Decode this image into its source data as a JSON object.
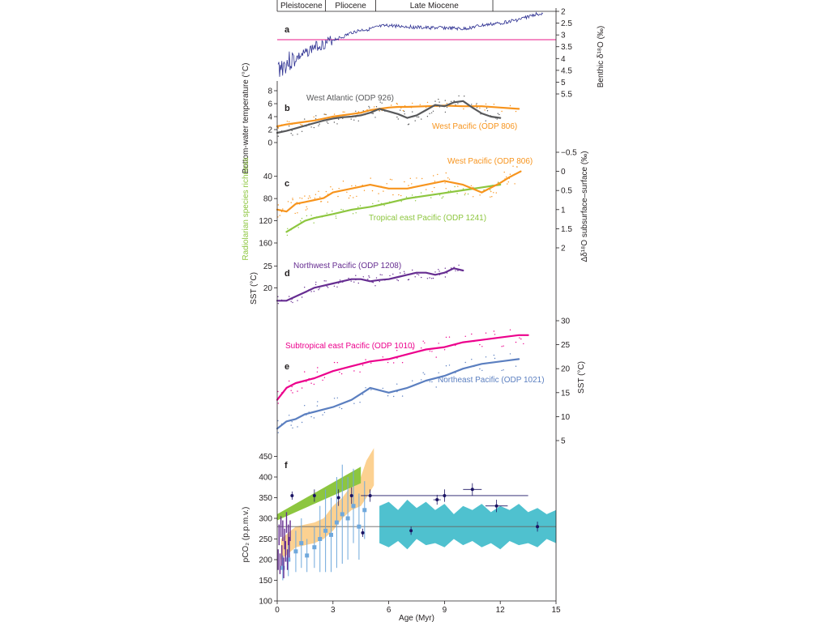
{
  "figure": {
    "epochs": [
      "Pleistocene",
      "Pliocene",
      "Late Miocene"
    ],
    "epoch_bounds_myr": [
      0,
      2.6,
      5.3,
      11.6
    ],
    "x_axis": {
      "label": "Age (Myr)",
      "ticks": [
        "0",
        "3",
        "6",
        "9",
        "12",
        "15"
      ],
      "range": [
        0,
        15
      ]
    }
  },
  "chart_data": [
    {
      "panel": "a",
      "type": "line",
      "ylabel": "Benthic δ¹⁸O (‰)",
      "ylim": [
        2,
        5.5
      ],
      "inverted": true,
      "yticks": [
        "2",
        "2.5",
        "3",
        "3.5",
        "4",
        "4.5",
        "5",
        "5.5"
      ],
      "reference_line_y": 3.2,
      "colors": {
        "series": "#2e3192",
        "reference": "#e8178a"
      },
      "series": [
        {
          "x": [
            0.1,
            0.5,
            1,
            1.5,
            2,
            2.5,
            3,
            3.5,
            4,
            4.5,
            5,
            5.5,
            6,
            7,
            8,
            9,
            10,
            11,
            12,
            13,
            14
          ],
          "values": [
            4.4,
            4.2,
            4.0,
            3.8,
            3.5,
            3.4,
            3.2,
            3.1,
            2.9,
            2.8,
            2.75,
            2.65,
            2.6,
            2.65,
            2.7,
            2.7,
            2.75,
            2.6,
            2.5,
            2.35,
            2.1
          ]
        }
      ]
    },
    {
      "panel": "b",
      "type": "line",
      "ylabel": "Bottom-water temperature (°C)",
      "ylim": [
        0,
        8
      ],
      "yticks": [
        "0",
        "2",
        "4",
        "6",
        "8"
      ],
      "colors": {
        "West Atlantic (ODP 926)": "#58595b",
        "West Pacific (ODP 806)": "#f7941d"
      },
      "annotations": [
        "West Atlantic (ODP 926)",
        "West Pacific (ODP 806)"
      ],
      "series": [
        {
          "name": "West Atlantic (ODP 926)",
          "x": [
            0,
            0.5,
            1,
            1.5,
            2,
            2.5,
            3,
            3.5,
            4,
            4.5,
            5,
            5.5,
            6,
            6.5,
            7,
            7.5,
            8,
            8.5,
            9,
            9.5,
            10,
            10.5,
            11,
            11.5,
            12
          ],
          "values": [
            1.5,
            1.8,
            2.2,
            2.6,
            3.0,
            3.4,
            3.7,
            3.9,
            4.0,
            4.2,
            4.6,
            5.2,
            4.8,
            4.4,
            3.8,
            4.2,
            5.0,
            5.8,
            5.6,
            6.2,
            6.4,
            5.4,
            4.5,
            4.0,
            3.8
          ]
        },
        {
          "name": "West Pacific (ODP 806)",
          "x": [
            0,
            0.5,
            1,
            1.5,
            2,
            2.5,
            3,
            3.5,
            4,
            4.5,
            5,
            5.5,
            6,
            6.5,
            7,
            8,
            9,
            10,
            11,
            12,
            13
          ],
          "values": [
            2.5,
            2.8,
            3.0,
            3.2,
            3.4,
            3.7,
            4.0,
            4.2,
            4.4,
            4.6,
            5.0,
            5.2,
            5.4,
            5.5,
            5.5,
            5.6,
            5.7,
            5.6,
            5.6,
            5.4,
            5.2
          ]
        }
      ]
    },
    {
      "panel": "c",
      "type": "line",
      "ylabel": "Radiolarian species richness",
      "ylim": [
        20,
        160
      ],
      "inverted": true,
      "yticks": [
        "40",
        "80",
        "120",
        "160"
      ],
      "ylabel_right": "Δδ¹⁸O subsurface–surface (‰)",
      "ylim_right": [
        -0.5,
        2
      ],
      "yticks_right": [
        "−0.5",
        "0",
        "0.5",
        "1",
        "1.5",
        "2"
      ],
      "colors": {
        "West Pacific (ODP 806)": "#f7941d",
        "Tropical east Pacific (ODP 1241)": "#8dc63f"
      },
      "annotations": [
        "West Pacific (ODP 806)",
        "Tropical east Pacific (ODP 1241)"
      ],
      "series": [
        {
          "name": "West Pacific (ODP 806)",
          "axis": "right",
          "x": [
            0,
            0.5,
            1,
            1.5,
            2,
            2.5,
            3,
            4,
            5,
            6,
            7,
            8,
            9,
            10,
            11,
            12,
            12.5,
            13.1
          ],
          "values": [
            1.0,
            1.05,
            0.85,
            0.8,
            0.75,
            0.7,
            0.55,
            0.45,
            0.35,
            0.45,
            0.45,
            0.35,
            0.25,
            0.35,
            0.55,
            0.3,
            0.15,
            0.0
          ]
        },
        {
          "name": "Tropical east Pacific (ODP 1241)",
          "axis": "left",
          "x": [
            0.5,
            1,
            1.5,
            2,
            3,
            4,
            5,
            6,
            7,
            8,
            9,
            10,
            11,
            12
          ],
          "values": [
            140,
            130,
            120,
            115,
            108,
            100,
            95,
            88,
            80,
            75,
            70,
            65,
            60,
            55
          ]
        }
      ]
    },
    {
      "panel": "d",
      "type": "line",
      "ylabel": "SST (°C)",
      "ylim": [
        15,
        27
      ],
      "yticks": [
        "20",
        "25"
      ],
      "colors": {
        "Northwest Pacific (ODP 1208)": "#662d91"
      },
      "annotations": [
        "Northwest Pacific (ODP 1208)"
      ],
      "series": [
        {
          "name": "Northwest Pacific (ODP 1208)",
          "x": [
            0,
            0.5,
            1,
            1.5,
            2,
            2.5,
            3,
            3.5,
            4,
            4.5,
            5,
            5.5,
            6,
            6.5,
            7,
            7.5,
            8,
            8.5,
            9,
            9.5,
            10
          ],
          "values": [
            17,
            17,
            18,
            19,
            20,
            20.5,
            21,
            21.5,
            22,
            22,
            21.5,
            21.8,
            22,
            22.5,
            23,
            23.5,
            23.5,
            23,
            23.5,
            24.5,
            24
          ]
        }
      ]
    },
    {
      "panel": "e",
      "type": "line",
      "ylabel": "SST (°C)",
      "ylim": [
        5,
        30
      ],
      "yticks": [
        "5",
        "10",
        "15",
        "20",
        "25",
        "30"
      ],
      "colors": {
        "Subtropical east Pacific (ODP 1010)": "#ec008c",
        "Northeast Pacific (ODP 1021)": "#5b7fc0"
      },
      "annotations": [
        "Subtropical east Pacific (ODP 1010)",
        "Northeast Pacific (ODP 1021)"
      ],
      "series": [
        {
          "name": "Subtropical east Pacific (ODP 1010)",
          "x": [
            0,
            0.5,
            1,
            1.5,
            2,
            3,
            4,
            5,
            6,
            7,
            8,
            9,
            10,
            11,
            12,
            13,
            13.5
          ],
          "values": [
            13.5,
            16,
            17,
            17.5,
            18,
            19.5,
            20.5,
            21.5,
            22,
            23,
            24,
            24.5,
            25.5,
            26,
            26.5,
            27,
            27
          ]
        },
        {
          "name": "Northeast Pacific (ODP 1021)",
          "x": [
            0,
            0.5,
            1,
            1.5,
            2,
            3,
            4,
            5,
            6,
            7,
            8,
            9,
            10,
            11,
            12,
            13
          ],
          "values": [
            7.5,
            9,
            9.5,
            10.5,
            11,
            12,
            13.5,
            16,
            15,
            16,
            17.5,
            18.5,
            20,
            21,
            21.5,
            22
          ]
        }
      ]
    },
    {
      "panel": "f",
      "type": "scatter",
      "ylabel": "pCO₂ (p.p.m.v.)",
      "ylim": [
        100,
        500
      ],
      "yticks": [
        "100",
        "150",
        "200",
        "250",
        "300",
        "350",
        "400",
        "450"
      ],
      "colors": {
        "purple": "#662d91",
        "light_blue": "#6fa8dc",
        "dark_blue": "#1b1464",
        "green_band": "#8dc63f",
        "orange_band": "#fbc97e",
        "teal_band": "#4fc1cf",
        "reference": "#666666"
      },
      "reference_line_y": 280,
      "green_band": {
        "x": [
          0,
          4.5
        ],
        "lower": [
          295,
          385
        ],
        "upper": [
          310,
          425
        ]
      },
      "orange_band": {
        "x": [
          0.2,
          1,
          2,
          2.5,
          3,
          3.5,
          4,
          4.5,
          4.8,
          5.2
        ],
        "lower": [
          200,
          230,
          240,
          250,
          270,
          300,
          320,
          330,
          350,
          380
        ],
        "upper": [
          250,
          280,
          290,
          300,
          330,
          350,
          380,
          400,
          440,
          470
        ]
      },
      "teal_band": {
        "x": [
          5.5,
          6,
          6.5,
          7,
          7.5,
          8,
          8.5,
          9,
          9.5,
          10,
          10.5,
          11,
          11.5,
          12,
          12.5,
          13,
          13.5,
          14,
          14.5,
          15
        ],
        "lower": [
          240,
          230,
          245,
          225,
          250,
          235,
          240,
          230,
          250,
          235,
          245,
          230,
          240,
          225,
          245,
          235,
          240,
          230,
          250,
          240
        ],
        "upper": [
          330,
          340,
          320,
          345,
          325,
          340,
          320,
          335,
          310,
          330,
          320,
          335,
          315,
          330,
          320,
          335,
          315,
          325,
          310,
          320
        ]
      },
      "purple_points": {
        "x": [
          0.05,
          0.1,
          0.15,
          0.2,
          0.25,
          0.3,
          0.35,
          0.4,
          0.45,
          0.5,
          0.55,
          0.6,
          0.65,
          0.7
        ],
        "values": [
          200,
          260,
          190,
          280,
          210,
          270,
          180,
          250,
          220,
          290,
          200,
          260,
          230,
          270
        ]
      },
      "light_blue_points": {
        "x": [
          0.3,
          0.6,
          1.0,
          1.3,
          1.6,
          2.0,
          2.3,
          2.6,
          2.9,
          3.2,
          3.5,
          3.8,
          4.1,
          4.4,
          4.7
        ],
        "values": [
          180,
          200,
          220,
          240,
          210,
          230,
          250,
          270,
          260,
          290,
          310,
          300,
          330,
          280,
          320
        ],
        "err": [
          30,
          40,
          50,
          60,
          40,
          50,
          80,
          100,
          90,
          110,
          120,
          100,
          90,
          80,
          70
        ]
      },
      "dark_blue_points": {
        "x": [
          0.8,
          2.0,
          3.3,
          4.0,
          4.6,
          5.0,
          7.2,
          8.6,
          9.0,
          10.5,
          11.8,
          14.0
        ],
        "values": [
          355,
          355,
          350,
          355,
          265,
          355,
          270,
          345,
          355,
          370,
          330,
          280
        ],
        "xerr": [
          0,
          0,
          0,
          0,
          0,
          0,
          0,
          0.2,
          4.5,
          0.5,
          0.6,
          0
        ],
        "yerr": [
          10,
          15,
          20,
          20,
          10,
          15,
          10,
          12,
          15,
          15,
          15,
          12
        ]
      }
    }
  ]
}
